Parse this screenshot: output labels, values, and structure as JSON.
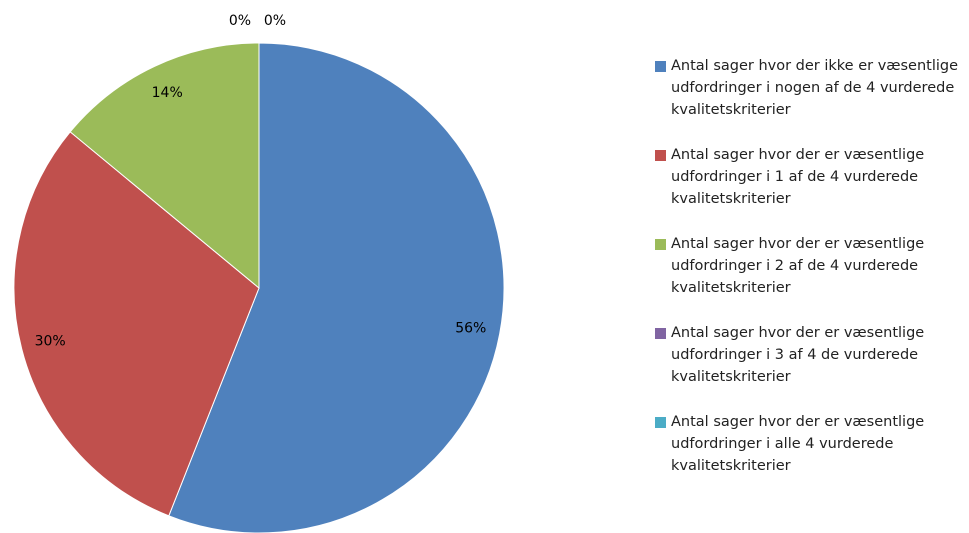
{
  "chart_data": {
    "type": "pie",
    "categories": [
      "Antal sager hvor der ikke er væsentlige udfordringer i nogen af de 4 vurderede kvalitetskriterier",
      "Antal sager hvor der er væsentlige udfordringer i 1 af de 4 vurderede kvalitetskriterier",
      "Antal sager hvor der er væsentlige udfordringer i 2 af de 4 vurderede kvalitetskriterier",
      "Antal sager hvor der er væsentlige udfordringer i 3 af 4 de vurderede kvalitetskriterier",
      "Antal sager hvor der er væsentlige udfordringer i alle 4 vurderede kvalitetskriterier"
    ],
    "values": [
      56,
      30,
      14,
      0,
      0
    ],
    "value_labels": [
      "56%",
      "30%",
      "14%",
      "0%",
      "0%"
    ],
    "colors": [
      "#4f81bd",
      "#c0504d",
      "#9bbb59",
      "#8064a2",
      "#4bacc6"
    ],
    "legend": "right"
  }
}
